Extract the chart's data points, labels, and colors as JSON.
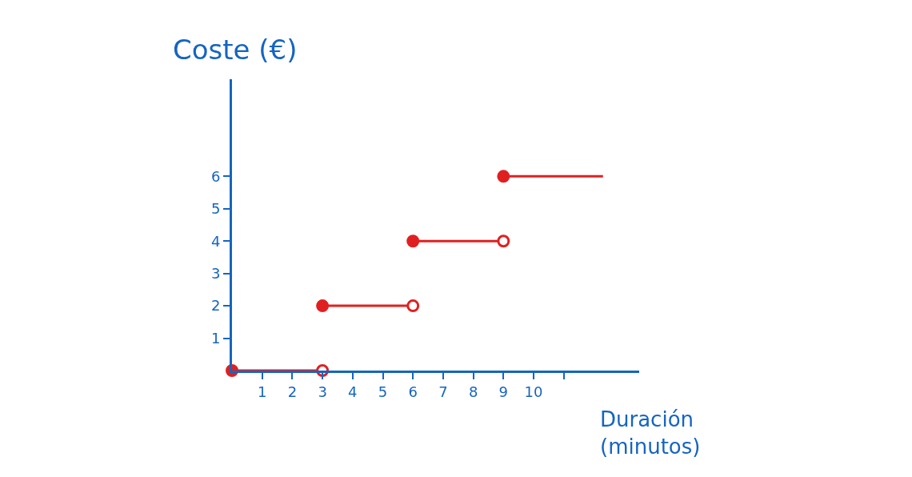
{
  "chart_data": {
    "type": "line",
    "ylabel": "Coste (€)",
    "xlabel": "Duración\n(minutos)",
    "xlim": [
      0,
      13.5
    ],
    "xticks": [
      1,
      2,
      3,
      4,
      5,
      6,
      7,
      8,
      9,
      10,
      {
        "value": 11,
        "label": null
      }
    ],
    "ylim": [
      0,
      9
    ],
    "yticks": [
      1,
      2,
      3,
      4,
      5,
      6
    ],
    "series": [
      {
        "color": "#e02020",
        "x": [
          0,
          3
        ],
        "values": [
          0,
          0
        ]
      },
      {
        "color": "#e02020",
        "x": [
          3,
          6
        ],
        "values": [
          2,
          2
        ]
      },
      {
        "color": "#e02020",
        "x": [
          6,
          9
        ],
        "values": [
          4,
          4
        ]
      },
      {
        "color": "#e02020",
        "x": [
          9,
          12.3
        ],
        "values": [
          6,
          6
        ]
      },
      {
        "type": "scatter",
        "marker": "circle",
        "color": "#e02020",
        "x": [
          0,
          3,
          6,
          9
        ],
        "values": [
          0,
          2,
          4,
          6
        ]
      },
      {
        "type": "scatter",
        "marker": "circle",
        "color": "#ffffff",
        "x": [
          3,
          6,
          9
        ],
        "values": [
          0,
          2,
          4
        ]
      }
    ]
  }
}
